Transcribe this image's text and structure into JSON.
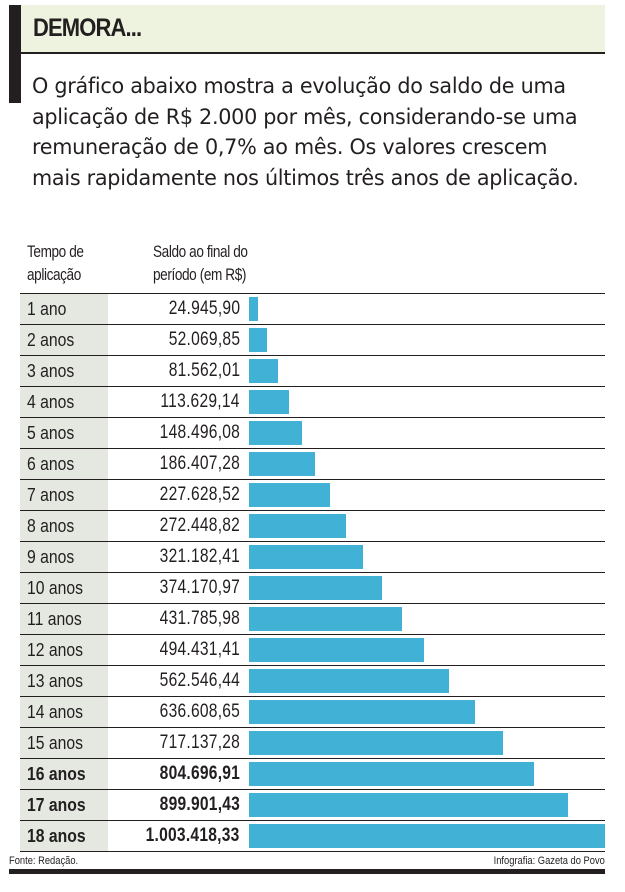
{
  "header": {
    "title": "DEMORA...",
    "intro": "O gráfico abaixo mostra a evolução do saldo de uma aplicação de R$ 2.000 por mês, considerando-se uma remuneração de 0,7% ao mês. Os valores crescem mais rapidamente nos últimos três anos de aplicação."
  },
  "colors": {
    "bar": "#41b2d6",
    "header_bg": "#eef3df",
    "label_bg": "#e4e8e1",
    "ink": "#231f20"
  },
  "chart_data": {
    "type": "bar",
    "orientation": "horizontal",
    "title": "DEMORA...",
    "column_headers": [
      "Tempo de aplicação",
      "Saldo ao final do período (em R$)"
    ],
    "categories": [
      "1 ano",
      "2 anos",
      "3 anos",
      "4 anos",
      "5 anos",
      "6 anos",
      "7 anos",
      "8 anos",
      "9 anos",
      "10 anos",
      "11 anos",
      "12 anos",
      "13 anos",
      "14 anos",
      "15 anos",
      "16 anos",
      "17 anos",
      "18 anos"
    ],
    "values": [
      24945.9,
      52069.85,
      81562.01,
      113629.14,
      148496.08,
      186407.28,
      227628.52,
      272448.82,
      321182.41,
      374170.97,
      431785.98,
      494431.41,
      562546.44,
      636608.65,
      717137.28,
      804696.91,
      899901.43,
      1003418.33
    ],
    "value_labels": [
      "24.945,90",
      "52.069,85",
      "81.562,01",
      "113.629,14",
      "148.496,08",
      "186.407,28",
      "227.628,52",
      "272.448,82",
      "321.182,41",
      "374.170,97",
      "431.785,98",
      "494.431,41",
      "562.546,44",
      "636.608,65",
      "717.137,28",
      "804.696,91",
      "899.901,43",
      "1.003.418,33"
    ],
    "highlighted": [
      "16 anos",
      "17 anos",
      "18 anos"
    ],
    "xlim": [
      0,
      1003418.33
    ],
    "grid": false,
    "legend": "none"
  },
  "footer": {
    "source": "Fonte: Redação.",
    "credit": "Infografia: Gazeta do Povo"
  }
}
